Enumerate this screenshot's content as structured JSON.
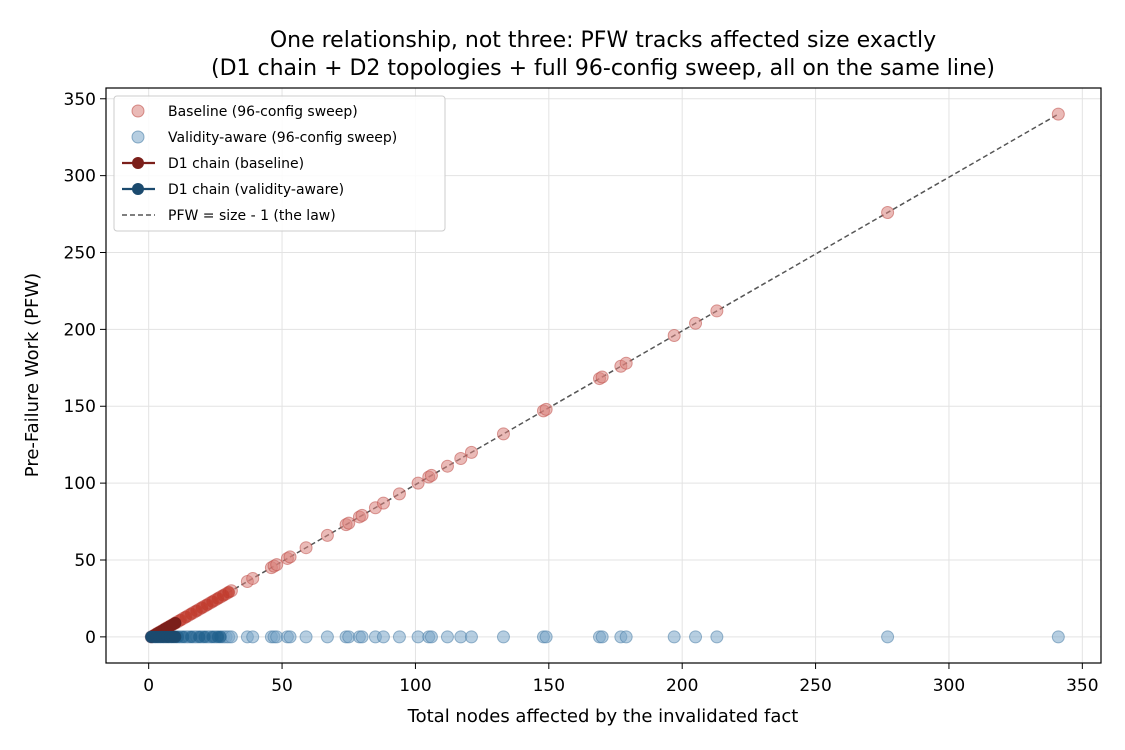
{
  "chart_data": {
    "type": "scatter",
    "title": "One relationship, not three: PFW tracks affected size exactly",
    "subtitle": "(D1 chain + D2 topologies + full 96-config sweep, all on the same line)",
    "xlabel": "Total nodes affected by the invalidated fact",
    "ylabel": "Pre-Failure Work (PFW)",
    "xlim": [
      -16,
      357
    ],
    "ylim": [
      -17,
      357
    ],
    "xticks": [
      0,
      50,
      100,
      150,
      200,
      250,
      300,
      350
    ],
    "yticks": [
      0,
      50,
      100,
      150,
      200,
      250,
      300,
      350
    ],
    "grid": true,
    "legend_position": "top-left",
    "series": [
      {
        "name": "Baseline (96-config sweep)",
        "kind": "scatter",
        "color": "#d9827c",
        "x": [
          1,
          2,
          3,
          4,
          5,
          6,
          7,
          8,
          9,
          10,
          11,
          12,
          13,
          14,
          15,
          16,
          17,
          18,
          19,
          20,
          21,
          22,
          23,
          24,
          25,
          26,
          27,
          28,
          29,
          30,
          31,
          37,
          39,
          46,
          47,
          48,
          52,
          53,
          59,
          67,
          74,
          75,
          79,
          80,
          85,
          88,
          94,
          101,
          105,
          106,
          112,
          117,
          121,
          133,
          148,
          149,
          169,
          170,
          177,
          179,
          197,
          205,
          213,
          277,
          341
        ],
        "y": [
          0,
          1,
          2,
          3,
          4,
          5,
          6,
          7,
          8,
          9,
          10,
          11,
          12,
          13,
          14,
          15,
          16,
          17,
          18,
          19,
          20,
          21,
          22,
          23,
          24,
          25,
          26,
          27,
          28,
          29,
          30,
          36,
          38,
          45,
          46,
          47,
          51,
          52,
          58,
          66,
          73,
          74,
          78,
          79,
          84,
          87,
          93,
          100,
          104,
          105,
          111,
          116,
          120,
          132,
          147,
          148,
          168,
          169,
          176,
          178,
          196,
          204,
          212,
          276,
          340
        ]
      },
      {
        "name": "Validity-aware (96-config sweep)",
        "kind": "scatter",
        "color": "#7aa6c8",
        "x": [
          1,
          2,
          3,
          4,
          5,
          6,
          7,
          8,
          9,
          10,
          11,
          12,
          13,
          14,
          15,
          16,
          17,
          18,
          19,
          20,
          21,
          22,
          23,
          24,
          25,
          26,
          27,
          28,
          29,
          30,
          31,
          37,
          39,
          46,
          47,
          48,
          52,
          53,
          59,
          67,
          74,
          75,
          79,
          80,
          85,
          88,
          94,
          101,
          105,
          106,
          112,
          117,
          121,
          133,
          148,
          149,
          169,
          170,
          177,
          179,
          197,
          205,
          213,
          277,
          341
        ],
        "y": [
          0,
          0,
          0,
          0,
          0,
          0,
          0,
          0,
          0,
          0,
          0,
          0,
          0,
          0,
          0,
          0,
          0,
          0,
          0,
          0,
          0,
          0,
          0,
          0,
          0,
          0,
          0,
          0,
          0,
          0,
          0,
          0,
          0,
          0,
          0,
          0,
          0,
          0,
          0,
          0,
          0,
          0,
          0,
          0,
          0,
          0,
          0,
          0,
          0,
          0,
          0,
          0,
          0,
          0,
          0,
          0,
          0,
          0,
          0,
          0,
          0,
          0,
          0,
          0,
          0
        ]
      },
      {
        "name": "D1 chain (baseline)",
        "kind": "line",
        "color": "#7b1f1a",
        "x": [
          1,
          2,
          3,
          4,
          5,
          6,
          7,
          8,
          9,
          10
        ],
        "y": [
          0,
          1,
          2,
          3,
          4,
          5,
          6,
          7,
          8,
          9
        ]
      },
      {
        "name": "D1 chain (validity-aware)",
        "kind": "line",
        "color": "#1b4a6e",
        "x": [
          1,
          2,
          3,
          4,
          5,
          6,
          7,
          8,
          9,
          10
        ],
        "y": [
          0,
          0,
          0,
          0,
          0,
          0,
          0,
          0,
          0,
          0
        ]
      },
      {
        "name": "PFW = size - 1 (the law)",
        "kind": "reference",
        "color": "#555555",
        "x": [
          1,
          341
        ],
        "y": [
          0,
          340
        ]
      }
    ],
    "overlay_points": {
      "color": "#c0392b",
      "x": [
        2,
        4,
        6,
        8,
        10,
        12,
        14,
        16,
        18,
        20,
        22,
        24,
        26,
        28,
        30
      ],
      "y": [
        1,
        3,
        5,
        7,
        9,
        11,
        13,
        15,
        17,
        19,
        21,
        23,
        25,
        27,
        29
      ]
    },
    "overlay_points_aware": {
      "color": "#1f5f8b",
      "x": [
        1,
        3,
        5,
        7,
        9,
        11,
        13,
        16,
        19,
        21,
        24,
        26,
        27
      ],
      "y": [
        0,
        0,
        0,
        0,
        0,
        0,
        0,
        0,
        0,
        0,
        0,
        0,
        0
      ]
    }
  }
}
